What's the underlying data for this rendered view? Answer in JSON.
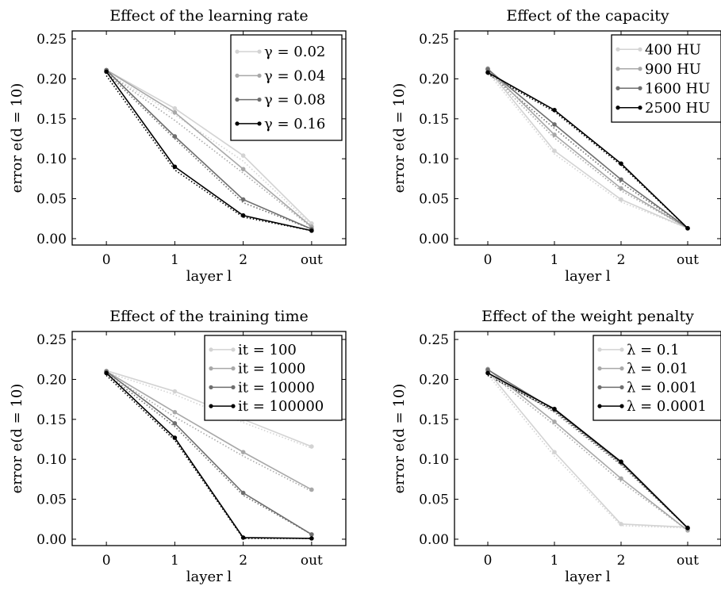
{
  "chart_data": [
    {
      "type": "line",
      "title": "Effect of the learning rate",
      "xlabel": "layer l",
      "ylabel": "error e(d = 10)",
      "categories": [
        "0",
        "1",
        "2",
        "out"
      ],
      "yticks": [
        "0.00",
        "0.05",
        "0.10",
        "0.15",
        "0.20",
        "0.25"
      ],
      "ylim": [
        -0.008,
        0.26
      ],
      "legend_position": "top-right",
      "series": [
        {
          "name": "γ = 0.02",
          "color": "#d3d3d3",
          "values": [
            0.211,
            0.163,
            0.104,
            0.019
          ],
          "dotted": [
            0.208,
            0.155,
            0.097,
            0.017
          ]
        },
        {
          "name": "γ = 0.04",
          "color": "#a8a8a8",
          "values": [
            0.211,
            0.158,
            0.087,
            0.015
          ],
          "dotted": [
            0.208,
            0.148,
            0.082,
            0.014
          ]
        },
        {
          "name": "γ = 0.08",
          "color": "#6e6e6e",
          "values": [
            0.211,
            0.128,
            0.049,
            0.012
          ],
          "dotted": [
            0.208,
            0.125,
            0.045,
            0.012
          ]
        },
        {
          "name": "γ = 0.16",
          "color": "#000000",
          "values": [
            0.209,
            0.09,
            0.029,
            0.01
          ],
          "dotted": [
            0.204,
            0.086,
            0.027,
            0.01
          ]
        }
      ]
    },
    {
      "type": "line",
      "title": "Effect of the capacity",
      "xlabel": "layer l",
      "ylabel": "error e(d = 10)",
      "categories": [
        "0",
        "1",
        "2",
        "out"
      ],
      "yticks": [
        "0.00",
        "0.05",
        "0.10",
        "0.15",
        "0.20",
        "0.25"
      ],
      "ylim": [
        -0.008,
        0.26
      ],
      "legend_position": "top-right",
      "series": [
        {
          "name": "400 HU",
          "color": "#d3d3d3",
          "values": [
            0.212,
            0.11,
            0.049,
            0.013
          ],
          "dotted": [
            0.208,
            0.106,
            0.046,
            0.013
          ]
        },
        {
          "name": "900 HU",
          "color": "#a8a8a8",
          "values": [
            0.213,
            0.13,
            0.063,
            0.013
          ],
          "dotted": [
            0.209,
            0.126,
            0.06,
            0.013
          ]
        },
        {
          "name": "1600 HU",
          "color": "#6e6e6e",
          "values": [
            0.212,
            0.143,
            0.074,
            0.013
          ],
          "dotted": [
            0.208,
            0.138,
            0.07,
            0.013
          ]
        },
        {
          "name": "2500 HU",
          "color": "#000000",
          "values": [
            0.208,
            0.161,
            0.094,
            0.013
          ],
          "dotted": [
            0.206,
            0.159,
            0.092,
            0.013
          ]
        }
      ]
    },
    {
      "type": "line",
      "title": "Effect of the training time",
      "xlabel": "layer l",
      "ylabel": "error e(d = 10)",
      "categories": [
        "0",
        "1",
        "2",
        "out"
      ],
      "yticks": [
        "0.00",
        "0.05",
        "0.10",
        "0.15",
        "0.20",
        "0.25"
      ],
      "ylim": [
        -0.008,
        0.26
      ],
      "legend_position": "top-right",
      "series": [
        {
          "name": "it = 100",
          "color": "#d3d3d3",
          "values": [
            0.211,
            0.185,
            0.15,
            0.116
          ],
          "dotted": [
            0.209,
            0.181,
            0.146,
            0.114
          ]
        },
        {
          "name": "it = 1000",
          "color": "#a8a8a8",
          "values": [
            0.21,
            0.159,
            0.109,
            0.062
          ],
          "dotted": [
            0.208,
            0.153,
            0.104,
            0.06
          ]
        },
        {
          "name": "it = 10000",
          "color": "#6e6e6e",
          "values": [
            0.21,
            0.145,
            0.058,
            0.006
          ],
          "dotted": [
            0.207,
            0.141,
            0.055,
            0.006
          ]
        },
        {
          "name": "it = 100000",
          "color": "#000000",
          "values": [
            0.208,
            0.127,
            0.002,
            0.001
          ],
          "dotted": [
            0.205,
            0.124,
            0.001,
            0.001
          ]
        }
      ]
    },
    {
      "type": "line",
      "title": "Effect of the weight penalty",
      "xlabel": "layer l",
      "ylabel": "error e(d = 10)",
      "categories": [
        "0",
        "1",
        "2",
        "out"
      ],
      "yticks": [
        "0.00",
        "0.05",
        "0.10",
        "0.15",
        "0.20",
        "0.25"
      ],
      "ylim": [
        -0.008,
        0.26
      ],
      "legend_position": "top-right",
      "series": [
        {
          "name": "λ = 0.1",
          "color": "#d3d3d3",
          "values": [
            0.21,
            0.109,
            0.019,
            0.015
          ],
          "dotted": [
            0.206,
            0.104,
            0.017,
            0.014
          ]
        },
        {
          "name": "λ = 0.01",
          "color": "#a8a8a8",
          "values": [
            0.213,
            0.147,
            0.076,
            0.011
          ],
          "dotted": [
            0.209,
            0.143,
            0.072,
            0.011
          ]
        },
        {
          "name": "λ = 0.001",
          "color": "#6e6e6e",
          "values": [
            0.212,
            0.162,
            0.096,
            0.014
          ],
          "dotted": [
            0.208,
            0.159,
            0.093,
            0.014
          ]
        },
        {
          "name": "λ = 0.0001",
          "color": "#000000",
          "values": [
            0.208,
            0.163,
            0.097,
            0.014
          ],
          "dotted": [
            0.205,
            0.161,
            0.095,
            0.014
          ]
        }
      ]
    }
  ]
}
